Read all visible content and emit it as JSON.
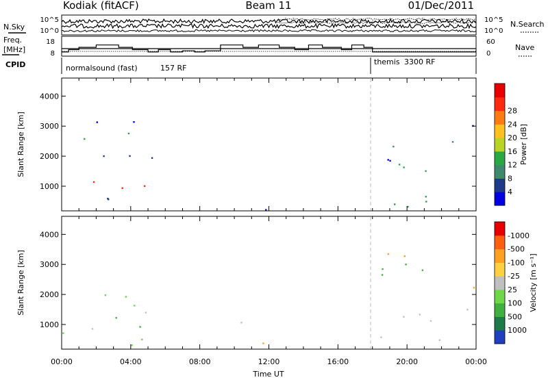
{
  "header": {
    "station": "Kodiak (fitACF)",
    "beam": "Beam 11",
    "date": "01/Dec/2011"
  },
  "status_panel": {
    "nsky_label": "N.Sky",
    "freq_label_1": "Freq.",
    "freq_label_2": "[MHz]",
    "cpid_label": "CPID",
    "nsearch_label": "N.Search",
    "nave_label": "Nave",
    "nsky_ticks": [
      "10^5",
      "10^0"
    ],
    "nsearch_ticks": [
      "10^5",
      "10^0"
    ],
    "freq_ticks": [
      "18",
      "8"
    ],
    "nave_ticks": [
      "60",
      "0"
    ],
    "modes": [
      {
        "name": "normalsound (fast)",
        "cpid": "157 RF",
        "start_hour": 0.0
      },
      {
        "name": "themis",
        "cpid": "3300 RF",
        "start_hour": 18.0
      }
    ],
    "freq_steps": [
      {
        "h": 0.0,
        "v": 11
      },
      {
        "h": 0.4,
        "v": 13
      },
      {
        "h": 1.0,
        "v": 15
      },
      {
        "h": 2.0,
        "v": 17
      },
      {
        "h": 3.3,
        "v": 15
      },
      {
        "h": 4.1,
        "v": 13
      },
      {
        "h": 5.0,
        "v": 11
      },
      {
        "h": 5.6,
        "v": 13
      },
      {
        "h": 6.3,
        "v": 11
      },
      {
        "h": 7.0,
        "v": 12
      },
      {
        "h": 7.7,
        "v": 11
      },
      {
        "h": 8.3,
        "v": 12
      },
      {
        "h": 9.2,
        "v": 17
      },
      {
        "h": 10.5,
        "v": 15
      },
      {
        "h": 11.4,
        "v": 17
      },
      {
        "h": 12.6,
        "v": 15
      },
      {
        "h": 13.5,
        "v": 13
      },
      {
        "h": 14.3,
        "v": 17
      },
      {
        "h": 15.1,
        "v": 15
      },
      {
        "h": 16.2,
        "v": 13
      },
      {
        "h": 16.8,
        "v": 17
      },
      {
        "h": 17.5,
        "v": 15
      },
      {
        "h": 18.0,
        "v": 11
      },
      {
        "h": 24.0,
        "v": 11
      }
    ]
  },
  "chart_data": [
    {
      "type": "heatmap",
      "name": "power",
      "x_range_hours": [
        0,
        24
      ],
      "ylim": [
        180,
        4600
      ],
      "ylabel": "Slant Range [km]",
      "yticks": [
        1000,
        2000,
        3000,
        4000
      ],
      "colorbar": {
        "label": "Power [dB]",
        "ticks": [
          "4",
          "8",
          "12",
          "16",
          "20",
          "24",
          "28"
        ],
        "colors": [
          "#0000e0",
          "#1e3a8a",
          "#3f8a6e",
          "#2aa844",
          "#b8d424",
          "#ffc020",
          "#ff7a10",
          "#ff2a10",
          "#e80000"
        ]
      },
      "scatter_regions": [
        {
          "h0": 0.0,
          "h1": 6.0,
          "r0": 300,
          "r1": 2100,
          "core": "#ff2a10",
          "edge": "#1e3a8a"
        },
        {
          "h0": 1.0,
          "h1": 4.5,
          "r0": 1700,
          "r1": 3300,
          "core": "#2aa844",
          "edge": "#0000e0"
        },
        {
          "h0": 8.8,
          "h1": 10.5,
          "r0": 1100,
          "r1": 1400,
          "core": "#2aa844",
          "edge": "#0000e0"
        },
        {
          "h0": 11.0,
          "h1": 13.4,
          "r0": 200,
          "r1": 600,
          "core": "#3f8a6e",
          "edge": "#0000e0"
        },
        {
          "h0": 17.8,
          "h1": 24.0,
          "r0": 300,
          "r1": 1800,
          "core": "#ff2a10",
          "edge": "#2aa844"
        },
        {
          "h0": 18.5,
          "h1": 24.0,
          "r0": 1800,
          "r1": 3100,
          "core": "#3f8a6e",
          "edge": "#0000e0"
        }
      ]
    },
    {
      "type": "heatmap",
      "name": "velocity",
      "x_range_hours": [
        0,
        24
      ],
      "ylim": [
        180,
        4600
      ],
      "ylabel": "Slant Range [km]",
      "yticks": [
        1000,
        2000,
        3000,
        4000
      ],
      "xlabel": "Time UT",
      "xticks": [
        "00:00",
        "04:00",
        "08:00",
        "12:00",
        "16:00",
        "20:00",
        "00:00"
      ],
      "colorbar": {
        "label": "Velocity [m s⁻¹]",
        "ticks": [
          "1000",
          "500",
          "100",
          "25",
          "-25",
          "-100",
          "-500",
          "-1000"
        ],
        "colors": [
          "#2040c0",
          "#1f7a4a",
          "#40b040",
          "#6fd84a",
          "#c0c0c0",
          "#ffd040",
          "#ffa020",
          "#ff6010",
          "#e80000"
        ]
      },
      "scatter_regions": [
        {
          "h0": 0.0,
          "h1": 6.0,
          "r0": 300,
          "r1": 2100,
          "core": "#c0c0c0",
          "edge": "#6fd84a"
        },
        {
          "h0": 3.0,
          "h1": 5.5,
          "r0": 600,
          "r1": 1800,
          "core": "#40b040",
          "edge": "#ffa020"
        },
        {
          "h0": 8.8,
          "h1": 10.5,
          "r0": 1000,
          "r1": 1500,
          "core": "#c0c0c0",
          "edge": "#c0c0c0"
        },
        {
          "h0": 11.0,
          "h1": 13.4,
          "r0": 200,
          "r1": 600,
          "core": "#ffa020",
          "edge": "#ffd040"
        },
        {
          "h0": 17.8,
          "h1": 24.0,
          "r0": 400,
          "r1": 1800,
          "core": "#c0c0c0",
          "edge": "#c0c0c0"
        },
        {
          "h0": 18.5,
          "h1": 24.0,
          "r0": 1800,
          "r1": 3500,
          "core": "#40b040",
          "edge": "#ffa020"
        }
      ]
    }
  ]
}
